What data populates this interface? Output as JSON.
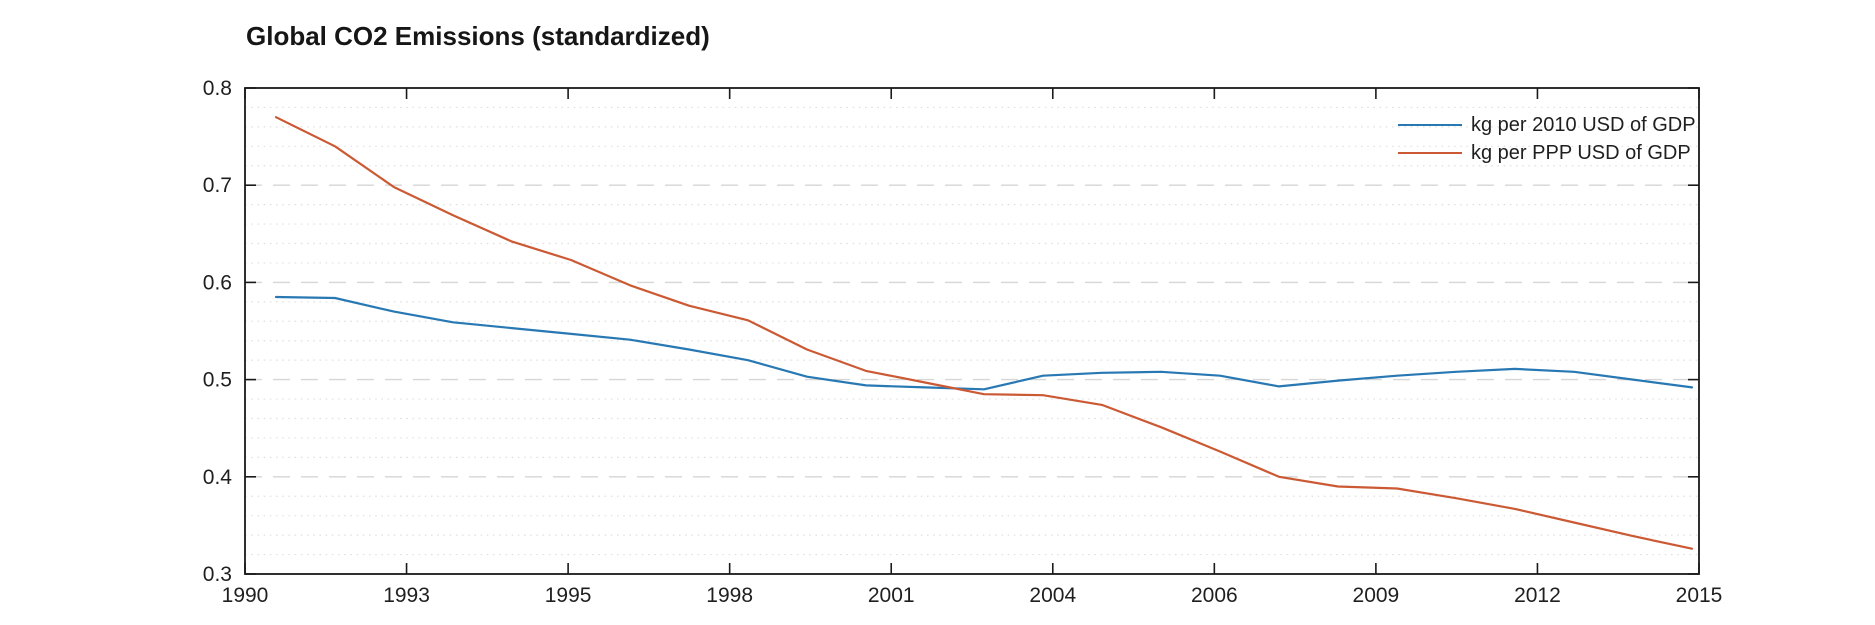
{
  "chart": {
    "title": "Global CO2 Emissions (standardized)"
  },
  "chart_data": {
    "type": "line",
    "title": "Global CO2 Emissions (standardized)",
    "x": [
      1991,
      1992,
      1993,
      1994,
      1995,
      1996,
      1997,
      1998,
      1999,
      2000,
      2001,
      2002,
      2003,
      2004,
      2005,
      2006,
      2007,
      2008,
      2009,
      2010,
      2011,
      2012,
      2013,
      2014,
      2015
    ],
    "series": [
      {
        "name": "kg per 2010 USD of GDP",
        "color": "#2878b4",
        "values": [
          0.585,
          0.584,
          0.57,
          0.559,
          0.553,
          0.547,
          0.541,
          0.531,
          0.52,
          0.503,
          0.494,
          0.492,
          0.49,
          0.504,
          0.507,
          0.508,
          0.504,
          0.493,
          0.499,
          0.504,
          0.508,
          0.511,
          0.508,
          0.5,
          0.492
        ]
      },
      {
        "name": "kg per PPP USD of GDP",
        "color": "#cb5a34",
        "values": [
          0.77,
          0.74,
          0.698,
          0.669,
          0.642,
          0.623,
          0.597,
          0.576,
          0.561,
          0.531,
          0.509,
          0.497,
          0.485,
          0.484,
          0.474,
          0.451,
          0.426,
          0.4,
          0.39,
          0.388,
          0.378,
          0.367,
          0.353,
          0.339,
          0.326
        ]
      }
    ],
    "x_tick_labels": [
      "1990",
      "1993",
      "1995",
      "1998",
      "2001",
      "2004",
      "2006",
      "2009",
      "2012",
      "2015"
    ],
    "y_tick_labels": [
      "0.3",
      "0.4",
      "0.5",
      "0.6",
      "0.7",
      "0.8"
    ],
    "ylim": [
      0.3,
      0.8
    ],
    "y_major_step": 0.1,
    "y_minor_step": 0.02,
    "grid": "horizontal-only: major dashed, minor dotted",
    "legend_position": "top-right-inside",
    "axis_style": "boxed, ticks inward on all four sides"
  },
  "style": {
    "axis_color": "#1a1a1a",
    "major_grid_color": "#d6d6d6",
    "minor_grid_color": "#e0e0e0",
    "label_color": "#1f1f1f"
  }
}
